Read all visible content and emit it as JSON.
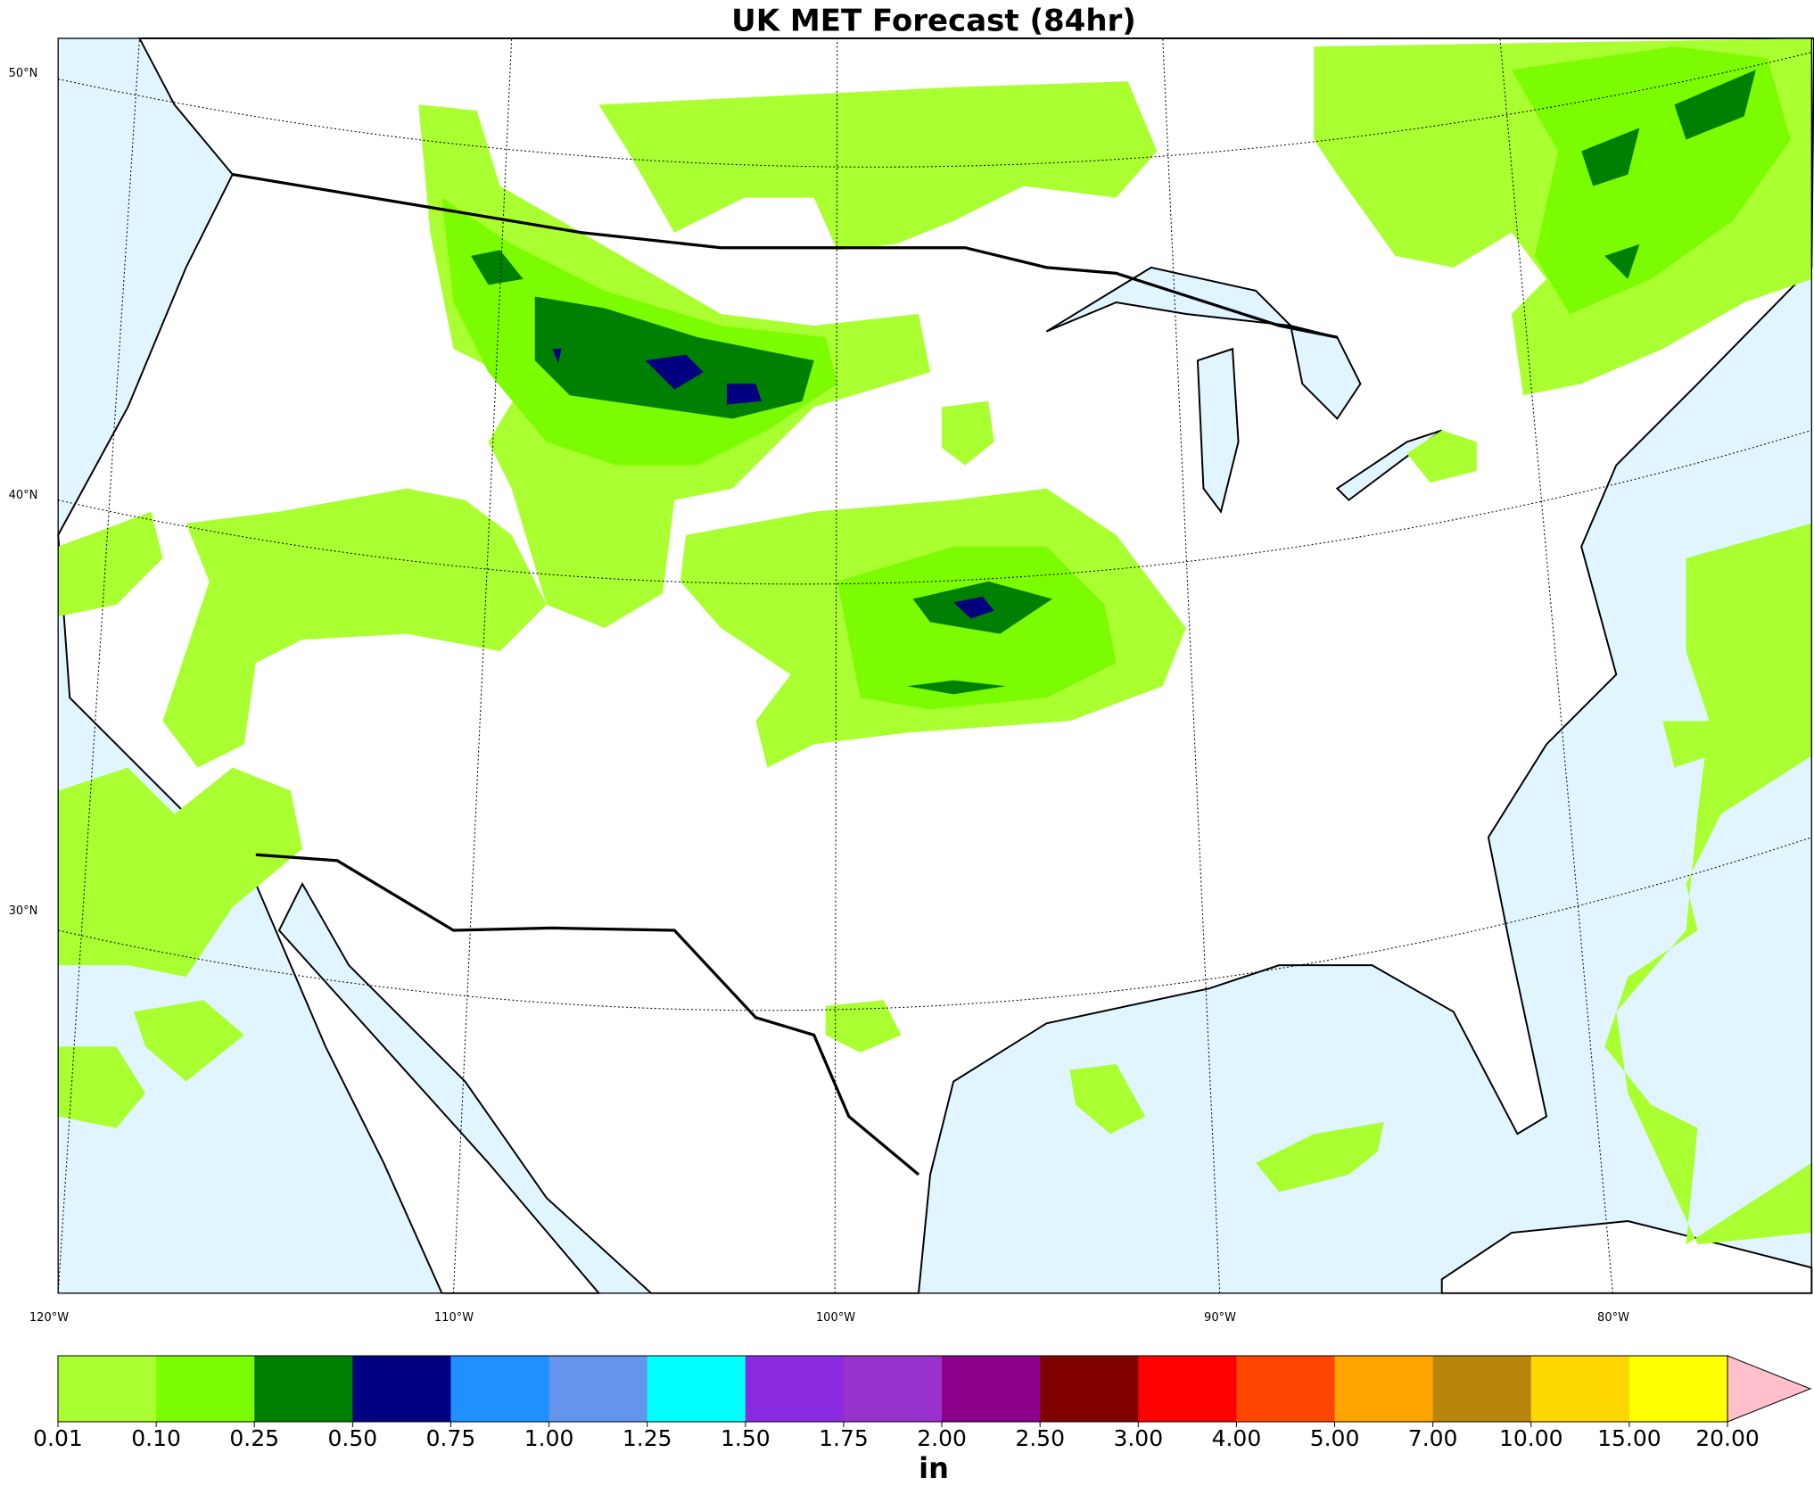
{
  "map": {
    "title": "UK MET Forecast (84hr)",
    "lat_labels": [
      "50°N",
      "40°N",
      "30°N"
    ],
    "lon_labels": [
      "120°W",
      "110°W",
      "100°W",
      "90°W",
      "80°W"
    ],
    "colorbar": {
      "ticks": [
        {
          "value": 0.01,
          "label": "0.01"
        },
        {
          "value": 0.1,
          "label": "0.10"
        },
        {
          "value": 0.25,
          "label": "0.25"
        },
        {
          "value": 0.5,
          "label": "0.50"
        },
        {
          "value": 0.75,
          "label": "0.75"
        },
        {
          "value": 1,
          "label": "1.00"
        },
        {
          "value": 1.25,
          "label": "1.25"
        },
        {
          "value": 1.5,
          "label": "1.50"
        },
        {
          "value": 1.75,
          "label": "1.75"
        },
        {
          "value": 2,
          "label": "2.00"
        },
        {
          "value": 2.5,
          "label": "2.50"
        },
        {
          "value": 3,
          "label": "3.00"
        },
        {
          "value": 4,
          "label": "4.00"
        },
        {
          "value": 5,
          "label": "5.00"
        },
        {
          "value": 7,
          "label": "7.00"
        },
        {
          "value": 10,
          "label": "10.00"
        },
        {
          "value": 15,
          "label": "15.00"
        },
        {
          "value": 20,
          "label": "20.00"
        }
      ],
      "colors": [
        "#a9ff2f",
        "#7cfc00",
        "#008000",
        "#000080",
        "#1e90ff",
        "#6495ed",
        "#00ffff",
        "#8a2be2",
        "#9932cc",
        "#8b008b",
        "#800000",
        "#ff0000",
        "#ff4500",
        "#ffa500",
        "#b8860b",
        "#ffd700",
        "#ffff00"
      ],
      "extend_color": "#ffc0cb",
      "unit": "in"
    }
  }
}
